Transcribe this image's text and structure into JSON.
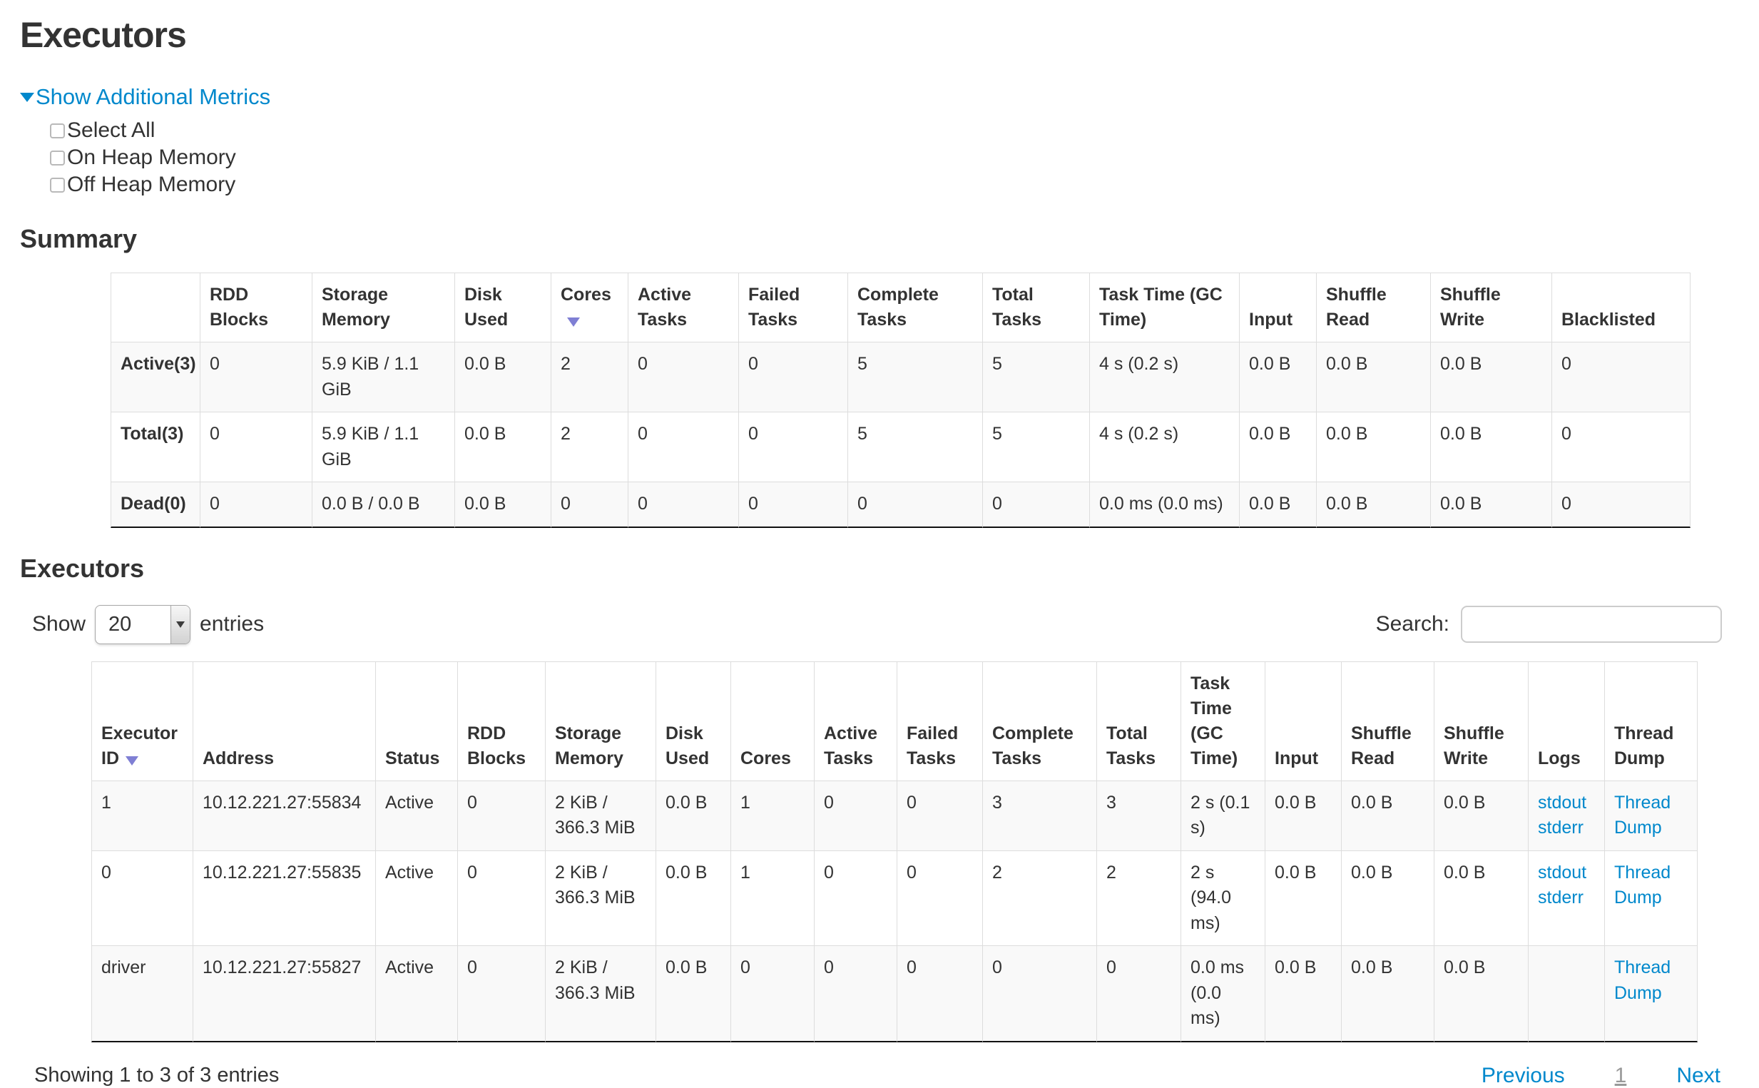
{
  "page": {
    "title": "Executors"
  },
  "metrics_toggle": {
    "label": "Show Additional Metrics",
    "options": [
      {
        "label": "Select All"
      },
      {
        "label": "On Heap Memory"
      },
      {
        "label": "Off Heap Memory"
      }
    ]
  },
  "summary": {
    "heading": "Summary",
    "columns": [
      {
        "label": "",
        "sorted": false
      },
      {
        "label": "RDD Blocks",
        "sorted": false
      },
      {
        "label": "Storage Memory",
        "sorted": false
      },
      {
        "label": "Disk Used",
        "sorted": false
      },
      {
        "label": "Cores",
        "sorted": true
      },
      {
        "label": "Active Tasks",
        "sorted": false
      },
      {
        "label": "Failed Tasks",
        "sorted": false
      },
      {
        "label": "Complete Tasks",
        "sorted": false
      },
      {
        "label": "Total Tasks",
        "sorted": false
      },
      {
        "label": "Task Time (GC Time)",
        "sorted": false
      },
      {
        "label": "Input",
        "sorted": false
      },
      {
        "label": "Shuffle Read",
        "sorted": false
      },
      {
        "label": "Shuffle Write",
        "sorted": false
      },
      {
        "label": "Blacklisted",
        "sorted": false
      }
    ],
    "rows": [
      {
        "label": "Active(3)",
        "values": [
          "0",
          "5.9 KiB / 1.1 GiB",
          "0.0 B",
          "2",
          "0",
          "0",
          "5",
          "5",
          "4 s (0.2 s)",
          "0.0 B",
          "0.0 B",
          "0.0 B",
          "0"
        ]
      },
      {
        "label": "Total(3)",
        "values": [
          "0",
          "5.9 KiB / 1.1 GiB",
          "0.0 B",
          "2",
          "0",
          "0",
          "5",
          "5",
          "4 s (0.2 s)",
          "0.0 B",
          "0.0 B",
          "0.0 B",
          "0"
        ]
      },
      {
        "label": "Dead(0)",
        "values": [
          "0",
          "0.0 B / 0.0 B",
          "0.0 B",
          "0",
          "0",
          "0",
          "0",
          "0",
          "0.0 ms (0.0 ms)",
          "0.0 B",
          "0.0 B",
          "0.0 B",
          "0"
        ]
      }
    ]
  },
  "executors_section": {
    "heading": "Executors",
    "length_control": {
      "prefix": "Show",
      "value": "20",
      "suffix": "entries"
    },
    "search": {
      "label": "Search:",
      "value": ""
    },
    "columns": [
      {
        "label": "Executor ID",
        "sorted": true
      },
      {
        "label": "Address",
        "sorted": false
      },
      {
        "label": "Status",
        "sorted": false
      },
      {
        "label": "RDD Blocks",
        "sorted": false
      },
      {
        "label": "Storage Memory",
        "sorted": false
      },
      {
        "label": "Disk Used",
        "sorted": false
      },
      {
        "label": "Cores",
        "sorted": false
      },
      {
        "label": "Active Tasks",
        "sorted": false
      },
      {
        "label": "Failed Tasks",
        "sorted": false
      },
      {
        "label": "Complete Tasks",
        "sorted": false
      },
      {
        "label": "Total Tasks",
        "sorted": false
      },
      {
        "label": "Task Time (GC Time)",
        "sorted": false
      },
      {
        "label": "Input",
        "sorted": false
      },
      {
        "label": "Shuffle Read",
        "sorted": false
      },
      {
        "label": "Shuffle Write",
        "sorted": false
      },
      {
        "label": "Logs",
        "sorted": false
      },
      {
        "label": "Thread Dump",
        "sorted": false
      }
    ],
    "rows": [
      {
        "cells": [
          "1",
          "10.12.221.27:55834",
          "Active",
          "0",
          "2 KiB / 366.3 MiB",
          "0.0 B",
          "1",
          "0",
          "0",
          "3",
          "3",
          "2 s (0.1 s)",
          "0.0 B",
          "0.0 B",
          "0.0 B"
        ],
        "logs": [
          "stdout",
          "stderr"
        ],
        "thread_dump": "Thread Dump"
      },
      {
        "cells": [
          "0",
          "10.12.221.27:55835",
          "Active",
          "0",
          "2 KiB / 366.3 MiB",
          "0.0 B",
          "1",
          "0",
          "0",
          "2",
          "2",
          "2 s (94.0 ms)",
          "0.0 B",
          "0.0 B",
          "0.0 B"
        ],
        "logs": [
          "stdout",
          "stderr"
        ],
        "thread_dump": "Thread Dump"
      },
      {
        "cells": [
          "driver",
          "10.12.221.27:55827",
          "Active",
          "0",
          "2 KiB / 366.3 MiB",
          "0.0 B",
          "0",
          "0",
          "0",
          "0",
          "0",
          "0.0 ms (0.0 ms)",
          "0.0 B",
          "0.0 B",
          "0.0 B"
        ],
        "logs": [],
        "thread_dump": "Thread Dump"
      }
    ],
    "info": "Showing 1 to 3 of 3 entries",
    "pagination": {
      "previous": "Previous",
      "pages": [
        "1"
      ],
      "next": "Next"
    }
  },
  "colors": {
    "link": "#0088cc",
    "text": "#333333",
    "border": "#dddddd",
    "stripe": "#f9f9f9",
    "table_end_border": "#111111",
    "sort_arrow": "#7f7fd4"
  }
}
